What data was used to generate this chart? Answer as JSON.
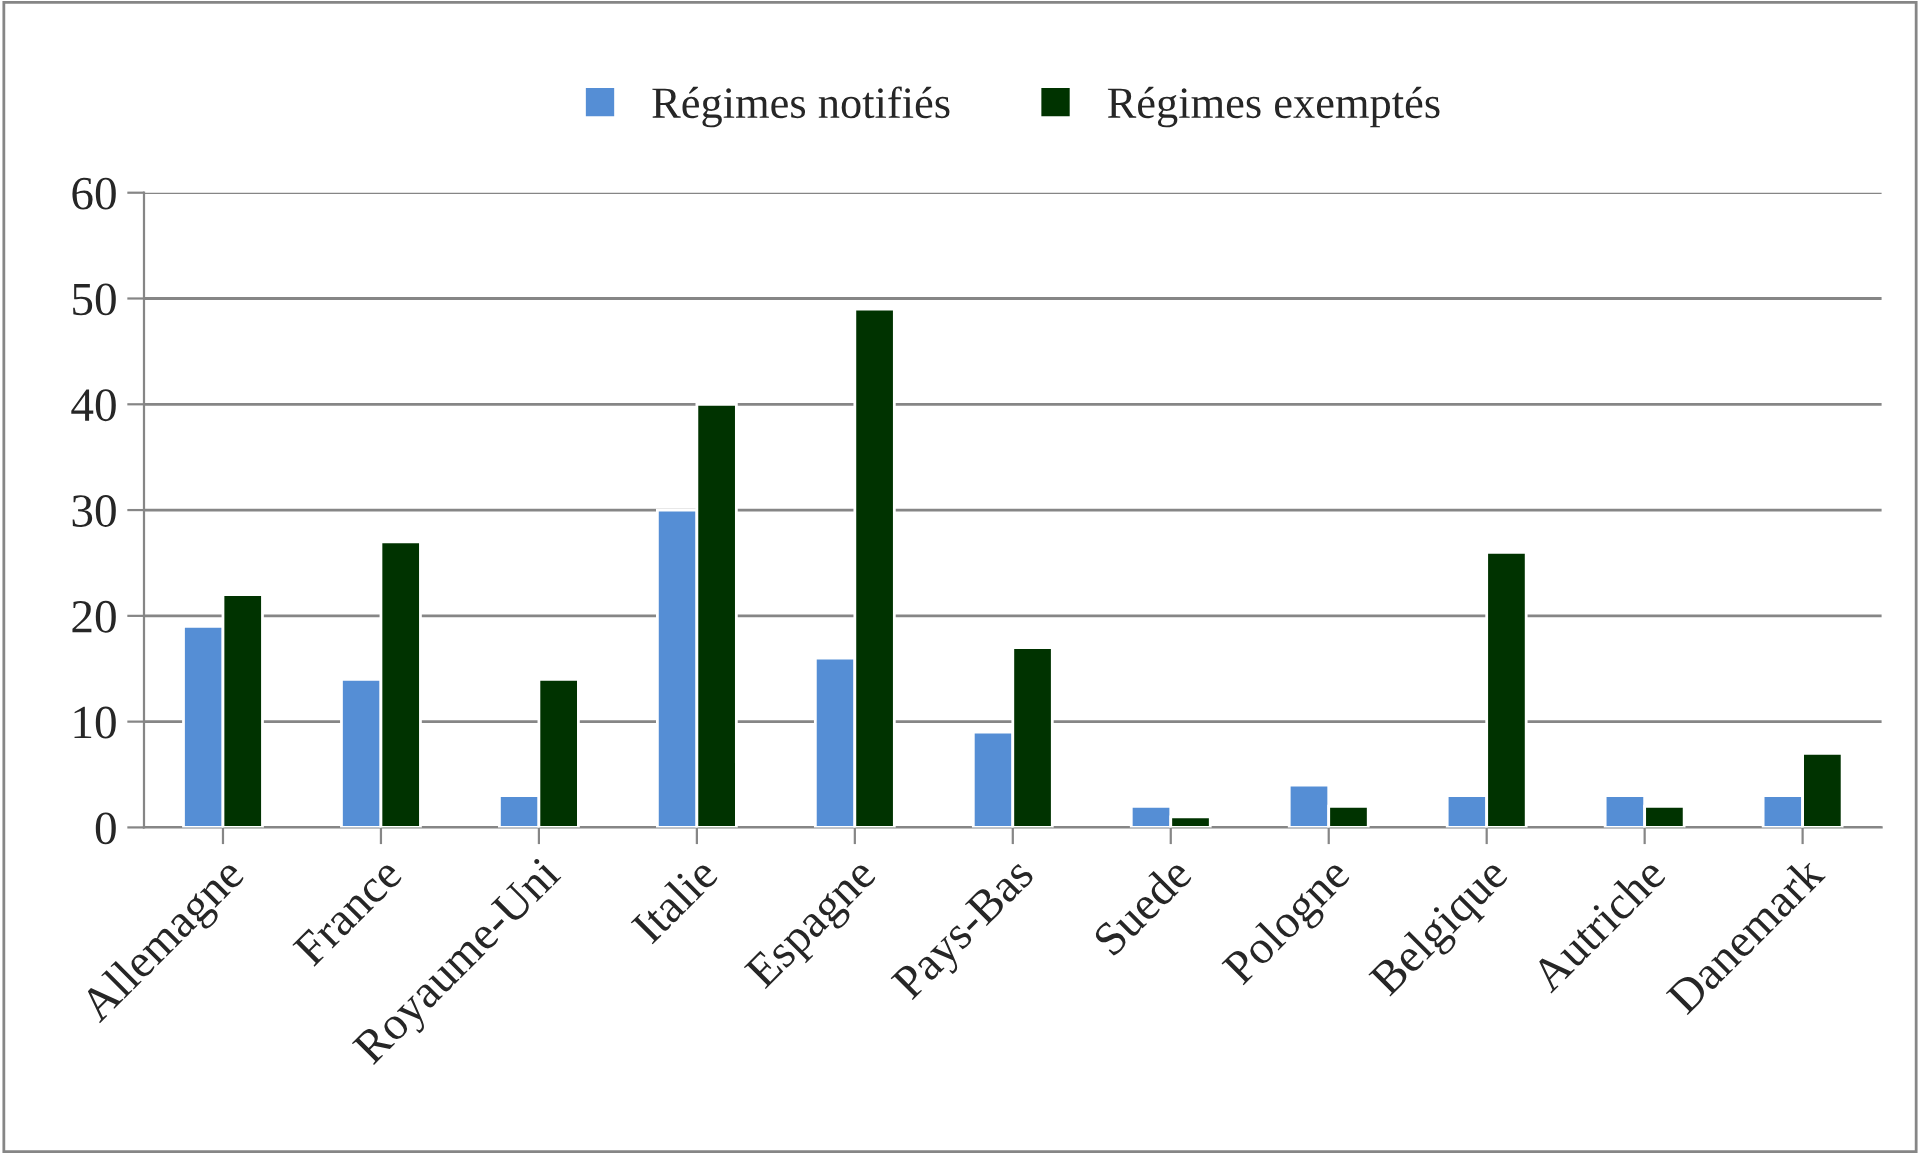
{
  "chart_data": {
    "type": "bar",
    "categories": [
      "Allemagne",
      "France",
      "Royaume-Uni",
      "Italie",
      "Espagne",
      "Pays-Bas",
      "Suede",
      "Pologne",
      "Belgique",
      "Autriche",
      "Danemark"
    ],
    "series": [
      {
        "name": "Régimes notifiés",
        "color": "#558ed5",
        "values": [
          19,
          14,
          3,
          30,
          16,
          9,
          2,
          4,
          3,
          3,
          3
        ]
      },
      {
        "name": "Régimes exemptés",
        "color": "#003300",
        "values": [
          22,
          27,
          14,
          40,
          49,
          17,
          1,
          2,
          26,
          2,
          7
        ]
      }
    ],
    "ylim": [
      0,
      60
    ],
    "yticks": [
      0,
      10,
      20,
      30,
      40,
      50,
      60
    ],
    "grid": "y",
    "legend": "top"
  }
}
